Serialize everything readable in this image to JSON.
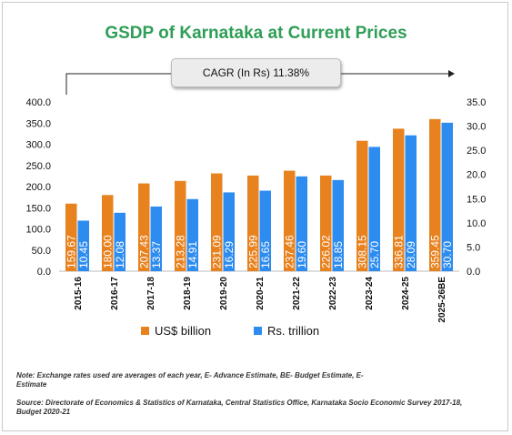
{
  "title": "GSDP of Karnataka at Current Prices",
  "cagr_label": "CAGR (In Rs) 11.38%",
  "note": "Note: Exchange rates used are averages of each year, E- Advance Estimate, BE- Budget Estimate, E-Estimate",
  "source": "Source: Directorate of Economics & Statistics of Karnataka, Central Statistics Office, Karnataka Socio Economic Survey 2017-18, Budget 2020-21",
  "colors": {
    "usd": "#e8821e",
    "rs": "#2d8cf0",
    "title": "#2f9e56"
  },
  "chart_data": {
    "type": "bar",
    "title": "GSDP of Karnataka at Current Prices",
    "categories": [
      "2015-16",
      "2016-17",
      "2017-18",
      "2018-19",
      "2019-20",
      "2020-21",
      "2021-22",
      "2022-23",
      "2023-24",
      "2024-25",
      "2025-26BE"
    ],
    "series": [
      {
        "name": "US$ billion",
        "axis": "left",
        "values": [
          159.67,
          180.0,
          207.43,
          213.28,
          231.09,
          225.99,
          237.46,
          226.02,
          308.15,
          336.81,
          359.45
        ],
        "labels": [
          "159.67",
          "180.00",
          "207.43",
          "213.28",
          "231.09",
          "225.99",
          "237.46",
          "226.02",
          "308.15",
          "336.81",
          "359.45"
        ]
      },
      {
        "name": "Rs. trillion",
        "axis": "right",
        "values": [
          10.45,
          12.08,
          13.37,
          14.91,
          16.29,
          16.65,
          19.6,
          18.85,
          25.7,
          28.09,
          30.7
        ],
        "labels": [
          "10.45",
          "12.08",
          "13.37",
          "14.91",
          "16.29",
          "16.65",
          "19.60",
          "18.85",
          "25.70",
          "28.09",
          "30.70"
        ]
      }
    ],
    "ylim_left": [
      0,
      400
    ],
    "ylim_right": [
      0,
      35
    ],
    "yticks_left": [
      "0.0",
      "50.0",
      "100.0",
      "150.0",
      "200.0",
      "250.0",
      "300.0",
      "350.0",
      "400.0"
    ],
    "yticks_right": [
      "0.0",
      "5.0",
      "10.0",
      "15.0",
      "20.0",
      "25.0",
      "30.0",
      "35.0"
    ],
    "legend": {
      "position": "bottom",
      "entries": [
        "US$ billion",
        "Rs. trillion"
      ]
    },
    "grid": false
  }
}
